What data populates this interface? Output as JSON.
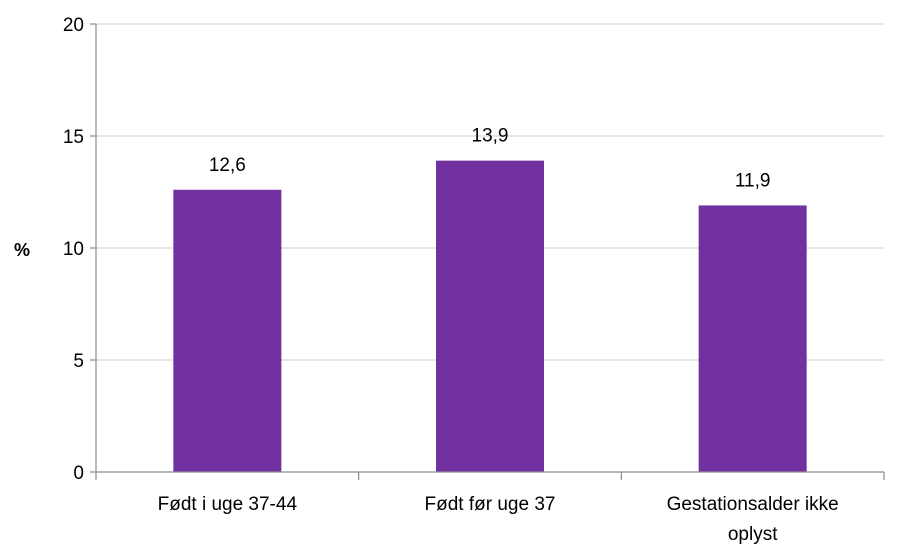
{
  "chart_data": {
    "type": "bar",
    "categories": [
      "Født i uge 37-44",
      "Født før uge 37",
      "Gestationsalder ikke oplyst"
    ],
    "category_lines": [
      [
        "Født i uge 37-44"
      ],
      [
        "Født før uge 37"
      ],
      [
        "Gestationsalder ikke",
        "oplyst"
      ]
    ],
    "values": [
      12.6,
      13.9,
      11.9
    ],
    "value_labels": [
      "12,6",
      "13,9",
      "11,9"
    ],
    "ylabel": "%",
    "ylim": [
      0,
      20
    ],
    "yticks": [
      0,
      5,
      10,
      15,
      20
    ],
    "grid": true,
    "legend": "none",
    "colors": {
      "bar": "#7030A0",
      "grid": "#D9D9C4",
      "axis": "#8C8C8C"
    }
  }
}
